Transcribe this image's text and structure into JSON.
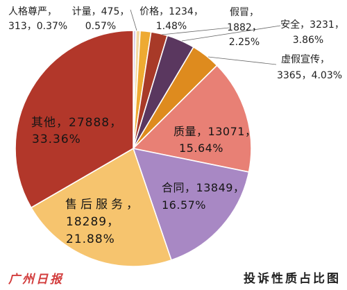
{
  "watermark": "广州日报",
  "chart_data": {
    "type": "pie",
    "title": "投诉性质占比图",
    "label_separator": "，",
    "slices": [
      {
        "label": "人格尊严",
        "value": 313,
        "percent": "0.37%",
        "color": "#d7c9e4"
      },
      {
        "label": "计量",
        "value": 475,
        "percent": "0.57%",
        "color": "#f3d9a4"
      },
      {
        "label": "价格",
        "value": 1234,
        "percent": "1.48%",
        "color": "#eeaa32"
      },
      {
        "label": "假冒",
        "value": 1882,
        "percent": "2.25%",
        "color": "#a83a28"
      },
      {
        "label": "安全",
        "value": 3231,
        "percent": "3.86%",
        "color": "#5a375f"
      },
      {
        "label": "虚假宣传",
        "value": 3365,
        "percent": "4.03%",
        "color": "#de8b1e"
      },
      {
        "label": "质量",
        "value": 13071,
        "percent": "15.64%",
        "color": "#e88075"
      },
      {
        "label": "合同",
        "value": 13849,
        "percent": "16.57%",
        "color": "#a888c4"
      },
      {
        "label": "售后服务",
        "value": 18289,
        "percent": "21.88%",
        "color": "#f6c46e"
      },
      {
        "label": "其他",
        "value": 27888,
        "percent": "33.36%",
        "color": "#b2372a"
      }
    ]
  }
}
